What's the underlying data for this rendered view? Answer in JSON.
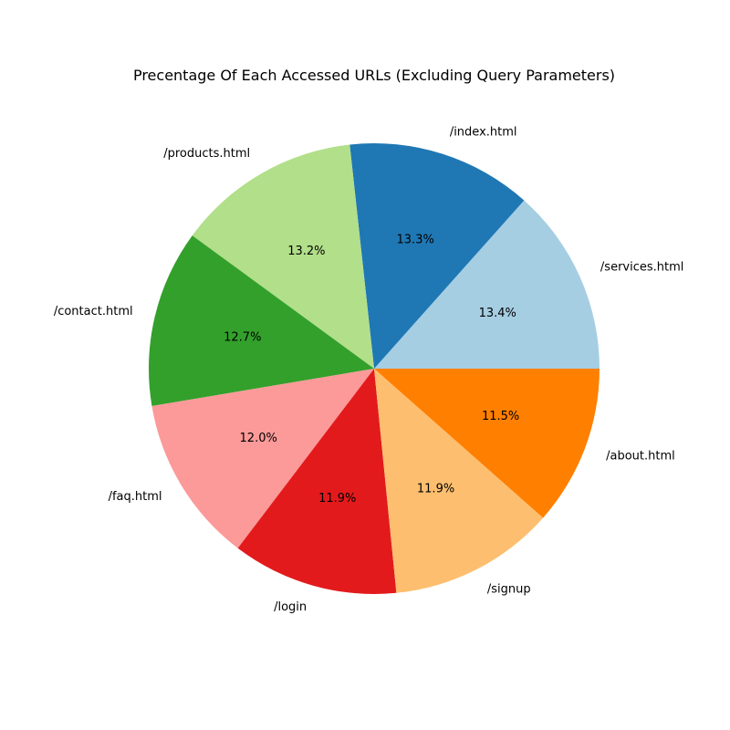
{
  "chart_data": {
    "type": "pie",
    "title": "Precentage Of Each Accessed URLs (Excluding Query Parameters)",
    "start_angle_deg": 0,
    "direction": "counterclockwise",
    "slices": [
      {
        "label": "/services.html",
        "value": 13.4,
        "pct_text": "13.4%",
        "color": "#a6cee3"
      },
      {
        "label": "/index.html",
        "value": 13.3,
        "pct_text": "13.3%",
        "color": "#1f78b4"
      },
      {
        "label": "/products.html",
        "value": 13.2,
        "pct_text": "13.2%",
        "color": "#b2df8a"
      },
      {
        "label": "/contact.html",
        "value": 12.7,
        "pct_text": "12.7%",
        "color": "#33a02c"
      },
      {
        "label": "/faq.html",
        "value": 12.0,
        "pct_text": "12.0%",
        "color": "#fb9a99"
      },
      {
        "label": "/login",
        "value": 11.9,
        "pct_text": "11.9%",
        "color": "#e31a1c"
      },
      {
        "label": "/signup",
        "value": 11.9,
        "pct_text": "11.9%",
        "color": "#fdbf6f"
      },
      {
        "label": "/about.html",
        "value": 11.5,
        "pct_text": "11.5%",
        "color": "#ff7f00"
      }
    ]
  }
}
